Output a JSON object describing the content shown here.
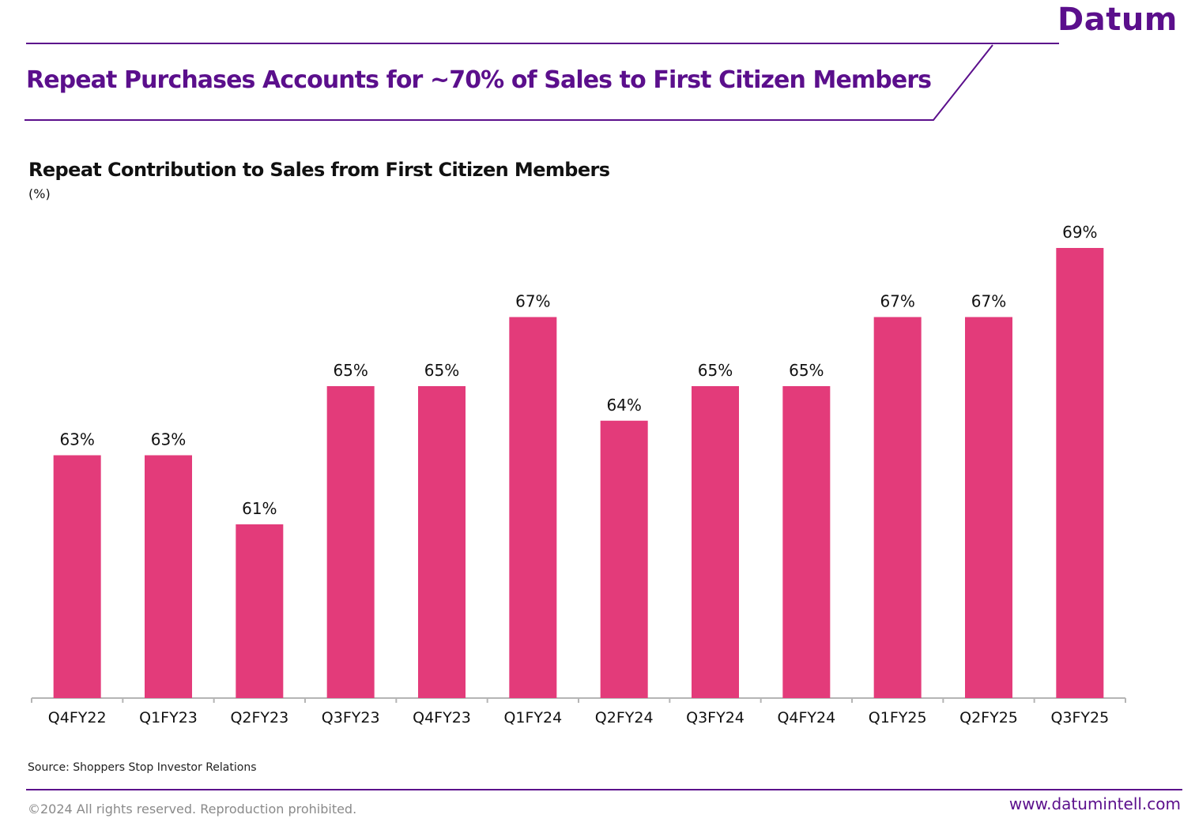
{
  "brand": {
    "name": "Datum",
    "color": "#5b0f8c"
  },
  "slide": {
    "title": "Repeat Purchases Accounts for ~70% of Sales to First Citizen Members"
  },
  "chart_data": {
    "type": "bar",
    "title": "Repeat Contribution to Sales from First Citizen Members",
    "unit_label": "(%)",
    "categories": [
      "Q4FY22",
      "Q1FY23",
      "Q2FY23",
      "Q3FY23",
      "Q4FY23",
      "Q1FY24",
      "Q2FY24",
      "Q3FY24",
      "Q4FY24",
      "Q1FY25",
      "Q2FY25",
      "Q3FY25"
    ],
    "values": [
      63,
      63,
      61,
      65,
      65,
      67,
      64,
      65,
      65,
      67,
      67,
      69
    ],
    "data_labels": [
      "63%",
      "63%",
      "61%",
      "65%",
      "65%",
      "67%",
      "64%",
      "65%",
      "65%",
      "67%",
      "67%",
      "69%"
    ],
    "xlabel": "",
    "ylabel": "",
    "y_axis_visible": false,
    "grid": false,
    "bar_color": "#e33b7a"
  },
  "footer": {
    "source": "Source: Shoppers Stop Investor Relations",
    "copyright": "©2024 All rights reserved. Reproduction prohibited.",
    "website": "www.datumintell.com"
  }
}
